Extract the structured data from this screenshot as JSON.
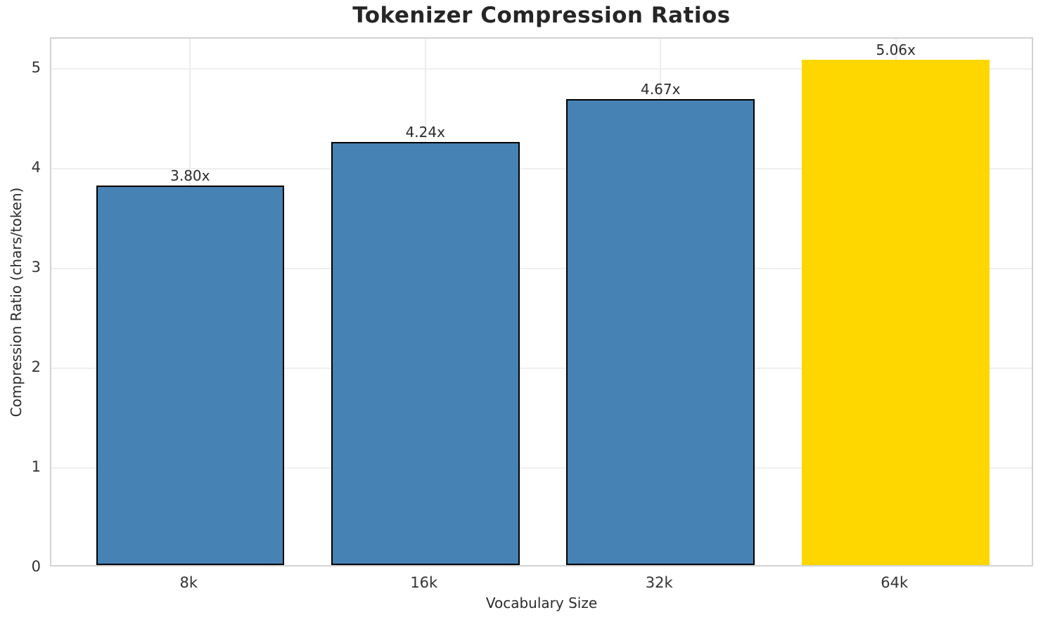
{
  "chart_data": {
    "type": "bar",
    "title": "Tokenizer Compression Ratios",
    "xlabel": "Vocabulary Size",
    "ylabel": "Compression Ratio (chars/token)",
    "categories": [
      "8k",
      "16k",
      "32k",
      "64k"
    ],
    "values": [
      3.8,
      4.24,
      4.67,
      5.06
    ],
    "bar_labels": [
      "3.80x",
      "4.24x",
      "4.67x",
      "5.06x"
    ],
    "bar_colors": [
      "#4682B4",
      "#4682B4",
      "#4682B4",
      "#FFD700"
    ],
    "bar_edge_colors": [
      "#000000",
      "#000000",
      "#000000",
      "none"
    ],
    "ylim": [
      0,
      5.3
    ],
    "yticks": [
      0,
      1,
      2,
      3,
      4,
      5
    ],
    "ytick_labels": [
      "0",
      "1",
      "2",
      "3",
      "4",
      "5"
    ],
    "grid": true,
    "legend_position": "none"
  }
}
